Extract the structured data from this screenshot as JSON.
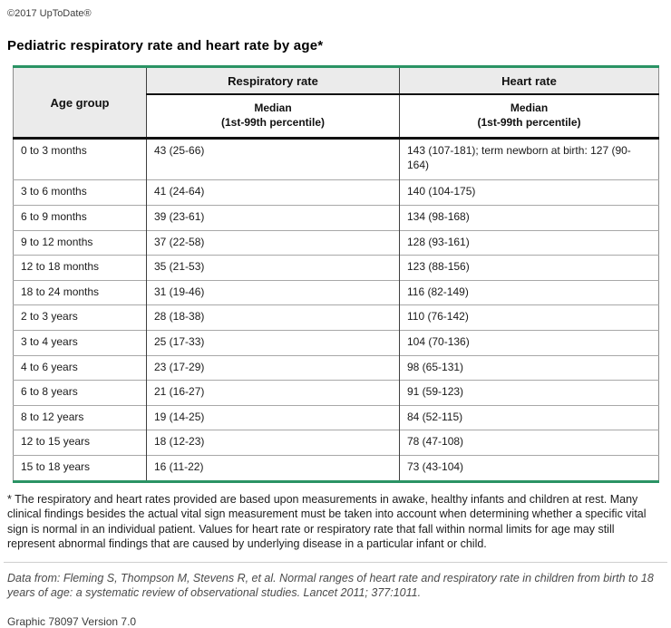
{
  "page": {
    "copyright": "©2017 UpToDate®",
    "title": "Pediatric respiratory rate and heart rate by age*"
  },
  "colors": {
    "accent_green": "#2a9364",
    "header_bg": "#ebebeb"
  },
  "table": {
    "headers": {
      "age_group": "Age group",
      "respiratory_rate": "Respiratory rate",
      "heart_rate": "Heart rate",
      "median_line1": "Median",
      "median_line2": "(1st-99th percentile)"
    },
    "rows": [
      {
        "age": "0 to 3 months",
        "rr": "43 (25-66)",
        "hr": "143 (107-181); term newborn at birth: 127 (90-164)"
      },
      {
        "age": "3 to 6 months",
        "rr": "41 (24-64)",
        "hr": "140 (104-175)"
      },
      {
        "age": "6 to 9 months",
        "rr": "39 (23-61)",
        "hr": "134 (98-168)"
      },
      {
        "age": "9 to 12 months",
        "rr": "37 (22-58)",
        "hr": "128 (93-161)"
      },
      {
        "age": "12 to 18 months",
        "rr": "35 (21-53)",
        "hr": "123 (88-156)"
      },
      {
        "age": "18 to 24 months",
        "rr": "31 (19-46)",
        "hr": "116 (82-149)"
      },
      {
        "age": "2 to 3 years",
        "rr": "28 (18-38)",
        "hr": "110 (76-142)"
      },
      {
        "age": "3 to 4 years",
        "rr": "25 (17-33)",
        "hr": "104 (70-136)"
      },
      {
        "age": "4 to 6 years",
        "rr": "23 (17-29)",
        "hr": "98 (65-131)"
      },
      {
        "age": "6 to 8 years",
        "rr": "21 (16-27)",
        "hr": "91 (59-123)"
      },
      {
        "age": "8 to 12 years",
        "rr": "19 (14-25)",
        "hr": "84 (52-115)"
      },
      {
        "age": "12 to 15 years",
        "rr": "18 (12-23)",
        "hr": "78 (47-108)"
      },
      {
        "age": "15 to 18 years",
        "rr": "16 (11-22)",
        "hr": "73 (43-104)"
      }
    ]
  },
  "footnotes": {
    "asterisk_note": "* The respiratory and heart rates provided are based upon measurements in awake, healthy infants and children at rest. Many clinical findings besides the actual vital sign measurement must be taken into account when determining whether a specific vital sign is normal in an individual patient. Values for heart rate or respiratory rate that fall within normal limits for age may still represent abnormal findings that are caused by underlying disease in a particular infant or child.",
    "data_from": "Data from: Fleming S, Thompson M, Stevens R, et al. Normal ranges of heart rate and respiratory rate in children from birth to 18 years of age: a systematic review of observational studies. Lancet 2011; 377:1011.",
    "graphic_version": "Graphic 78097 Version 7.0"
  }
}
